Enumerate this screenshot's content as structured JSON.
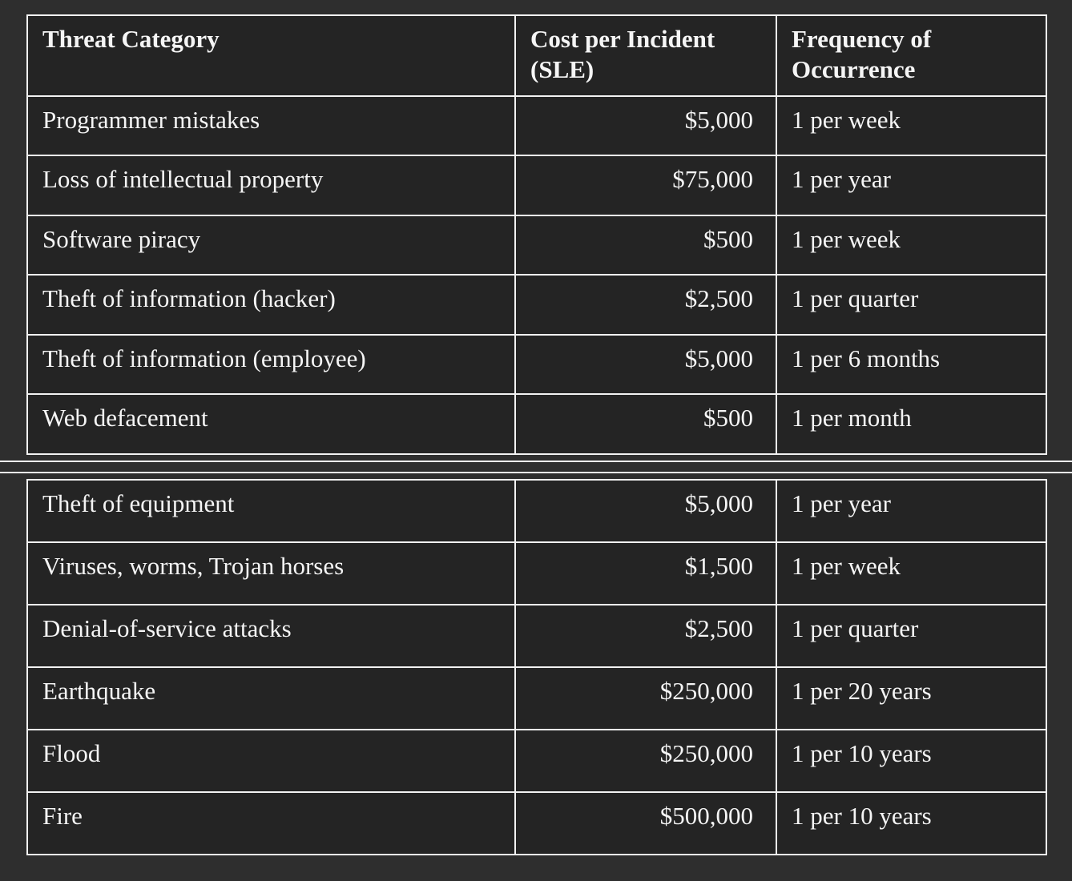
{
  "theme": {
    "page_background": "#2e2e2e",
    "cell_background": "#242424",
    "border_color": "#f2f2f2",
    "text_color": "#f5f5f5"
  },
  "table": {
    "headers": [
      "Threat Category",
      "Cost per Incident (SLE)",
      "Frequency of Occurrence"
    ],
    "section1": [
      {
        "category": "Programmer mistakes",
        "cost": "$5,000",
        "frequency": "1 per week"
      },
      {
        "category": "Loss of intellectual property",
        "cost": "$75,000",
        "frequency": "1 per year"
      },
      {
        "category": "Software piracy",
        "cost": "$500",
        "frequency": "1 per week"
      },
      {
        "category": "Theft of information (hacker)",
        "cost": "$2,500",
        "frequency": "1 per quarter"
      },
      {
        "category": "Theft of information (employee)",
        "cost": "$5,000",
        "frequency": "1 per 6 months"
      },
      {
        "category": "Web defacement",
        "cost": "$500",
        "frequency": "1 per month"
      }
    ],
    "section2": [
      {
        "category": "Theft of equipment",
        "cost": "$5,000",
        "frequency": "1 per year"
      },
      {
        "category": "Viruses, worms, Trojan horses",
        "cost": "$1,500",
        "frequency": "1 per week"
      },
      {
        "category": "Denial-of-service attacks",
        "cost": "$2,500",
        "frequency": "1 per quarter"
      },
      {
        "category": "Earthquake",
        "cost": "$250,000",
        "frequency": "1 per 20 years"
      },
      {
        "category": "Flood",
        "cost": "$250,000",
        "frequency": "1 per 10 years"
      },
      {
        "category": "Fire",
        "cost": "$500,000",
        "frequency": "1 per 10 years"
      }
    ]
  }
}
